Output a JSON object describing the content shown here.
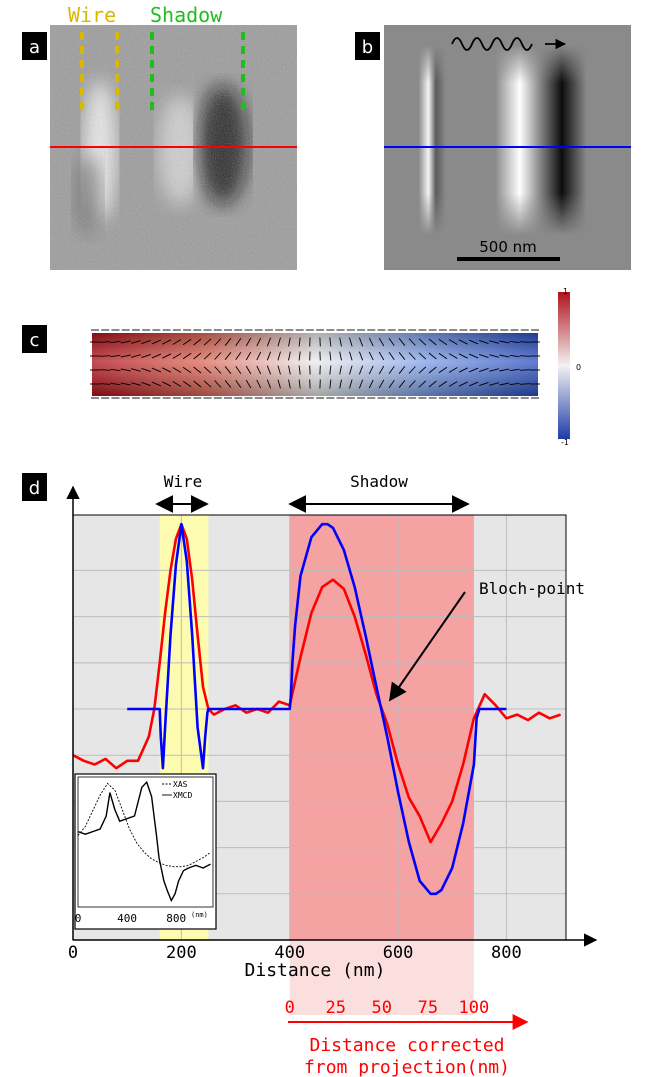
{
  "panel_letters": {
    "a": "a",
    "b": "b",
    "c": "c",
    "d": "d"
  },
  "panel_a": {
    "wire_label": "Wire",
    "shadow_label": "Shadow",
    "colors": {
      "wire": "#d9b800",
      "shadow": "#22bb22",
      "cut_line": "#ff0000"
    }
  },
  "panel_b": {
    "scale_bar_label": "500 nm",
    "colors": {
      "cut_line": "#0000ff"
    }
  },
  "panel_c": {
    "colorbar_ticks": {
      "top": "1",
      "middle": "0",
      "bottom": "-1"
    }
  },
  "chart_data": [
    {
      "type": "line",
      "annotations": {
        "wire": "Wire",
        "shadow": "Shadow",
        "bloch_point": "Bloch-point"
      },
      "xlabel": "Distance (nm)",
      "ylabel": "",
      "xlim": [
        0,
        910
      ],
      "x_ticks": [
        0,
        200,
        400,
        600,
        800
      ],
      "ylim": [
        -1.25,
        1.05
      ],
      "grid": true,
      "shaded_regions": [
        {
          "label": "Wire",
          "x": [
            160,
            250
          ],
          "color": "#fdfbb0"
        },
        {
          "label": "Shadow",
          "x": [
            400,
            740
          ],
          "color": "#f4a2a2"
        }
      ],
      "secondary_x_axis": {
        "xlabel_line1": "Distance corrected",
        "xlabel_line2": "from projection(nm)",
        "ticks": [
          "0",
          "25",
          "50",
          "75",
          "100"
        ],
        "color": "#ff0000"
      },
      "series": [
        {
          "color": "#ff0000",
          "x": [
            0,
            20,
            40,
            60,
            80,
            100,
            120,
            140,
            150,
            160,
            170,
            180,
            190,
            200,
            210,
            220,
            230,
            240,
            250,
            260,
            280,
            300,
            320,
            340,
            360,
            380,
            400,
            420,
            440,
            460,
            480,
            500,
            520,
            540,
            560,
            580,
            600,
            620,
            640,
            660,
            680,
            700,
            720,
            740,
            760,
            780,
            800,
            820,
            840,
            860,
            880,
            900
          ],
          "values": [
            -0.25,
            -0.28,
            -0.3,
            -0.27,
            -0.32,
            -0.28,
            -0.28,
            -0.15,
            0.0,
            0.25,
            0.52,
            0.75,
            0.92,
            1.0,
            0.92,
            0.7,
            0.4,
            0.12,
            0.0,
            -0.03,
            0.0,
            0.02,
            -0.02,
            0.0,
            -0.02,
            0.04,
            0.02,
            0.28,
            0.52,
            0.66,
            0.7,
            0.65,
            0.5,
            0.3,
            0.08,
            -0.08,
            -0.3,
            -0.48,
            -0.58,
            -0.72,
            -0.62,
            -0.5,
            -0.3,
            -0.05,
            0.08,
            0.02,
            -0.05,
            -0.03,
            -0.06,
            -0.02,
            -0.05,
            -0.03
          ]
        },
        {
          "color": "#0000ff",
          "x": [
            100,
            160,
            162,
            166,
            170,
            180,
            190,
            200,
            210,
            220,
            230,
            240,
            244,
            248,
            250,
            400,
            402,
            405,
            410,
            420,
            440,
            460,
            470,
            480,
            500,
            520,
            540,
            560,
            580,
            600,
            620,
            640,
            660,
            670,
            680,
            700,
            720,
            740,
            745,
            750,
            800
          ],
          "values": [
            0.0,
            0.0,
            -0.15,
            -0.32,
            -0.1,
            0.4,
            0.78,
            1.0,
            0.8,
            0.4,
            -0.1,
            -0.32,
            -0.15,
            -0.02,
            0.0,
            0.0,
            0.06,
            0.25,
            0.45,
            0.72,
            0.93,
            1.0,
            1.0,
            0.98,
            0.86,
            0.66,
            0.4,
            0.12,
            -0.15,
            -0.45,
            -0.72,
            -0.93,
            -1.0,
            -1.0,
            -0.98,
            -0.86,
            -0.62,
            -0.3,
            -0.05,
            0.0,
            0.0
          ]
        }
      ]
    },
    {
      "type": "line",
      "legend": [
        "XAS",
        "XMCD"
      ],
      "legend_position": "top-right",
      "x_unit_label": "(nm)",
      "x_ticks": [
        0,
        400,
        800
      ],
      "xlim": [
        0,
        1100
      ],
      "ylim": [
        0,
        1
      ],
      "series": [
        {
          "name": "XAS",
          "dashed": true,
          "x": [
            0,
            60,
            120,
            180,
            240,
            300,
            360,
            420,
            480,
            540,
            600,
            660,
            720,
            780,
            840,
            900,
            960,
            1020,
            1080
          ],
          "values": [
            0.55,
            0.62,
            0.74,
            0.86,
            0.95,
            0.9,
            0.75,
            0.6,
            0.49,
            0.42,
            0.37,
            0.34,
            0.32,
            0.31,
            0.31,
            0.32,
            0.35,
            0.38,
            0.42
          ]
        },
        {
          "name": "XMCD",
          "dashed": false,
          "x": [
            0,
            60,
            120,
            180,
            230,
            260,
            300,
            340,
            400,
            460,
            520,
            560,
            600,
            640,
            660,
            700,
            730,
            760,
            790,
            820,
            860,
            900,
            960,
            1020,
            1080
          ],
          "values": [
            0.58,
            0.56,
            0.58,
            0.6,
            0.7,
            0.88,
            0.75,
            0.66,
            0.68,
            0.7,
            0.92,
            0.96,
            0.85,
            0.55,
            0.38,
            0.2,
            0.12,
            0.05,
            0.1,
            0.2,
            0.28,
            0.3,
            0.32,
            0.3,
            0.33
          ]
        }
      ]
    }
  ]
}
